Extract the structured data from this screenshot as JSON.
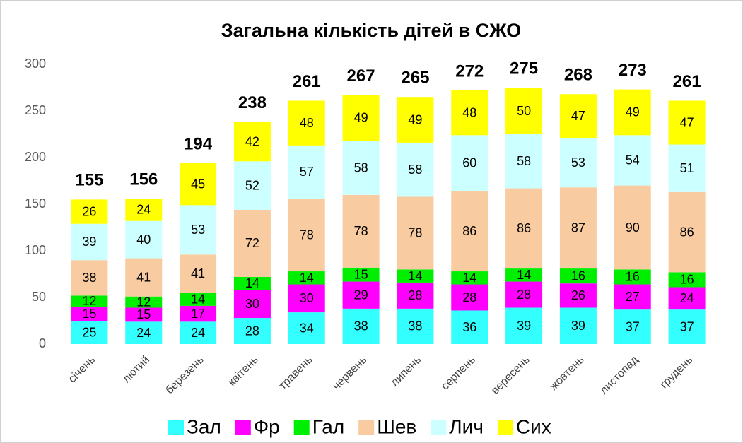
{
  "chart_data": {
    "type": "stacked-bar",
    "title": "Загальна кількість дітей в СЖО",
    "categories": [
      "січень",
      "лютий",
      "березень",
      "квітень",
      "травень",
      "червень",
      "липень",
      "серпень",
      "вересень",
      "жовтень",
      "листопад",
      "грудень"
    ],
    "series": [
      {
        "name": "Зал",
        "color": "#33ffff",
        "values": [
          25,
          24,
          24,
          28,
          34,
          38,
          38,
          36,
          39,
          39,
          37,
          37
        ]
      },
      {
        "name": "Фр",
        "color": "#ff00ff",
        "values": [
          15,
          15,
          17,
          30,
          30,
          29,
          28,
          28,
          28,
          26,
          27,
          24
        ]
      },
      {
        "name": "Гал",
        "color": "#00ee00",
        "values": [
          12,
          12,
          14,
          14,
          14,
          15,
          14,
          14,
          14,
          16,
          16,
          16
        ]
      },
      {
        "name": "Шев",
        "color": "#f8cba0",
        "values": [
          38,
          41,
          41,
          72,
          78,
          78,
          78,
          86,
          86,
          87,
          90,
          86
        ]
      },
      {
        "name": "Лич",
        "color": "#ccffff",
        "values": [
          39,
          40,
          53,
          52,
          57,
          58,
          58,
          60,
          58,
          53,
          54,
          51
        ]
      },
      {
        "name": "Сих",
        "color": "#ffff00",
        "values": [
          26,
          24,
          45,
          42,
          48,
          49,
          49,
          48,
          50,
          47,
          49,
          47
        ]
      }
    ],
    "totals": [
      155,
      156,
      194,
      238,
      261,
      267,
      265,
      272,
      275,
      268,
      273,
      261
    ],
    "ylim": [
      0,
      300
    ],
    "yticks": [
      0,
      50,
      100,
      150,
      200,
      250,
      300
    ],
    "grid": false,
    "legend": "bottom"
  }
}
